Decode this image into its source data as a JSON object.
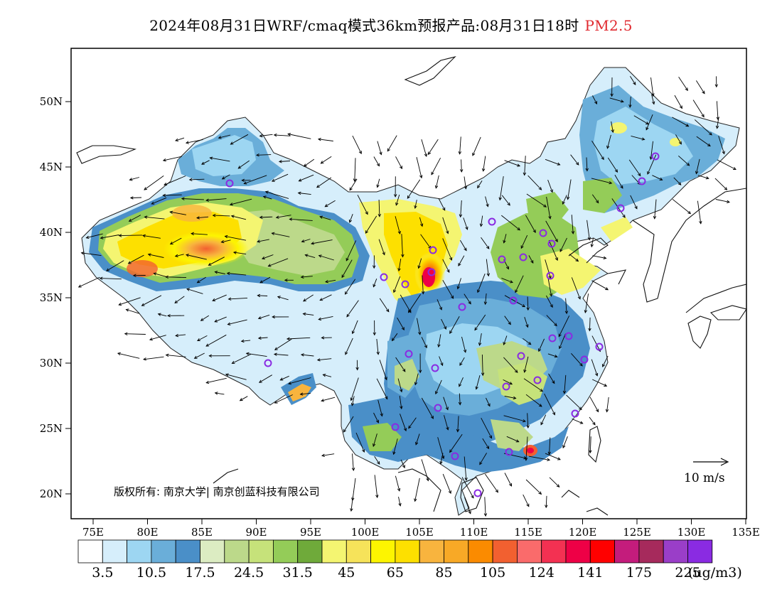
{
  "title": {
    "main": "2024年08月31日WRF/cmaq模式36km预报产品:08月31日18时",
    "species": "PM2.5",
    "species_color": "#e0282e"
  },
  "map": {
    "lat_ticks": [
      "50N",
      "45N",
      "40N",
      "35N",
      "30N",
      "25N",
      "20N"
    ],
    "lon_ticks": [
      "75E",
      "80E",
      "85E",
      "90E",
      "95E",
      "100E",
      "105E",
      "110E",
      "115E",
      "120E",
      "125E",
      "130E",
      "135E"
    ],
    "copyright": "版权所有: 南京大学| 南京创蓝科技有限公司",
    "wind_reference": "10 m/s"
  },
  "colorbar": {
    "colors": [
      "#ffffff",
      "#d6eefb",
      "#9dd6f2",
      "#6aaed9",
      "#4a8fc8",
      "#dcecc2",
      "#bcd98a",
      "#c6e27a",
      "#94cc58",
      "#6faa3a",
      "#f4f571",
      "#f6e35a",
      "#fdf500",
      "#fde000",
      "#f8b43e",
      "#f8a926",
      "#fb8b00",
      "#f26030",
      "#fa6b6b",
      "#f33152",
      "#ee0046",
      "#ff0000",
      "#c41c7c",
      "#a62a5c",
      "#9a3ec8",
      "#8a2be2"
    ],
    "labels": [
      "3.5",
      "10.5",
      "17.5",
      "24.5",
      "31.5",
      "45",
      "65",
      "85",
      "105",
      "124",
      "141",
      "175",
      "225"
    ],
    "unit": "(ug/m3)"
  }
}
